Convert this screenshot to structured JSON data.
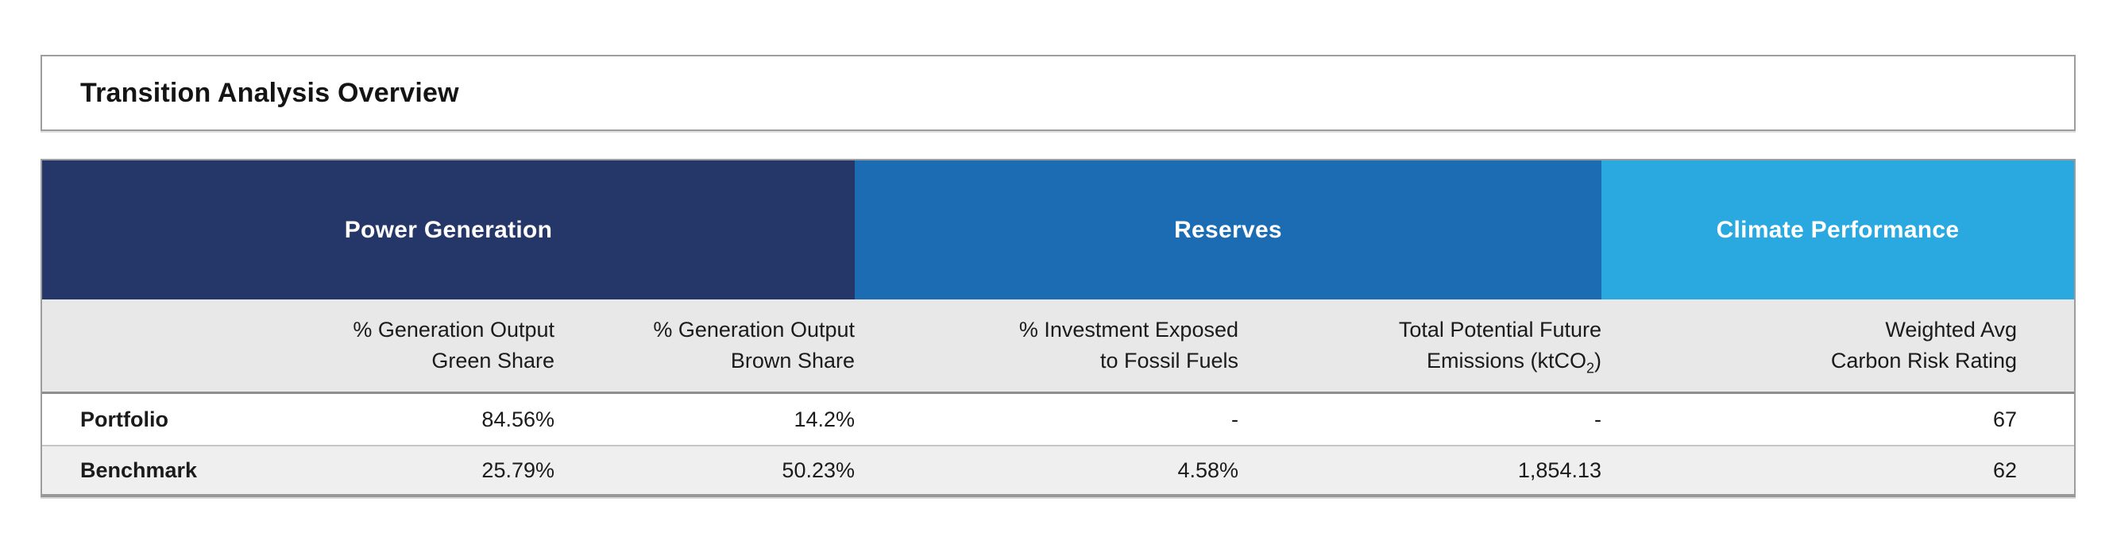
{
  "title": "Transition Analysis Overview",
  "colors": {
    "power_generation_band": "#253769",
    "reserves_band": "#1C6CB4",
    "climate_performance_band": "#29A9E0",
    "column_header_band": "#E8E8E8",
    "benchmark_row_background": "#EFEFEF",
    "table_border": "#9D9D9D"
  },
  "table": {
    "groups": [
      {
        "label": "Power Generation"
      },
      {
        "label": "Reserves"
      },
      {
        "label": "Climate Performance"
      }
    ],
    "columns": [
      {
        "line1": "% Generation Output",
        "line2": "Green Share"
      },
      {
        "line1": "% Generation Output",
        "line2": "Brown Share"
      },
      {
        "line1": "% Investment Exposed",
        "line2": "to Fossil Fuels"
      },
      {
        "line1": "Total Potential Future",
        "line2_pre": "Emissions (ktCO",
        "line2_sub": "2",
        "line2_post": ")"
      },
      {
        "line1": "Weighted Avg",
        "line2": "Carbon Risk Rating"
      }
    ],
    "rows": [
      {
        "label": "Portfolio",
        "values": [
          "84.56%",
          "14.2%",
          "-",
          "-",
          "67"
        ]
      },
      {
        "label": "Benchmark",
        "values": [
          "25.79%",
          "50.23%",
          "4.58%",
          "1,854.13",
          "62"
        ]
      }
    ]
  },
  "chart_data": {
    "type": "table",
    "title": "Transition Analysis Overview",
    "column_groups": [
      {
        "label": "Power Generation",
        "column_indexes": [
          0,
          1
        ]
      },
      {
        "label": "Reserves",
        "column_indexes": [
          2,
          3
        ]
      },
      {
        "label": "Climate Performance",
        "column_indexes": [
          4
        ]
      }
    ],
    "columns": [
      "% Generation Output Green Share",
      "% Generation Output Brown Share",
      "% Investment Exposed to Fossil Fuels",
      "Total Potential Future Emissions (ktCO2)",
      "Weighted Avg Carbon Risk Rating"
    ],
    "rows": [
      {
        "label": "Portfolio",
        "values": [
          "84.56%",
          "14.2%",
          "-",
          "-",
          "67"
        ]
      },
      {
        "label": "Benchmark",
        "values": [
          "25.79%",
          "50.23%",
          "4.58%",
          "1,854.13",
          "62"
        ]
      }
    ]
  }
}
